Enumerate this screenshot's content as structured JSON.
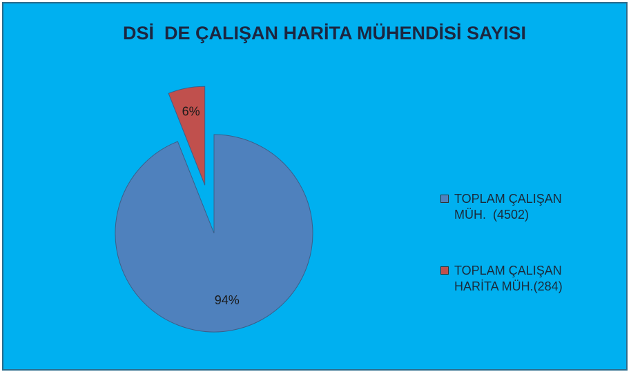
{
  "chart_data": {
    "type": "pie",
    "title": "DSİ  DE ÇALIŞAN HARİTA MÜHENDİSİ SAYISI",
    "categories": [
      "TOPLAM ÇALIŞAN MÜH.  (4502)",
      "TOPLAM ÇALIŞAN HARİTA MÜH.(284)"
    ],
    "values": [
      94,
      6
    ],
    "value_labels": [
      "94%",
      "6%"
    ],
    "colors": [
      "#4f81bd",
      "#c0504d"
    ],
    "exploded": [
      false,
      true
    ],
    "legend": "right"
  }
}
